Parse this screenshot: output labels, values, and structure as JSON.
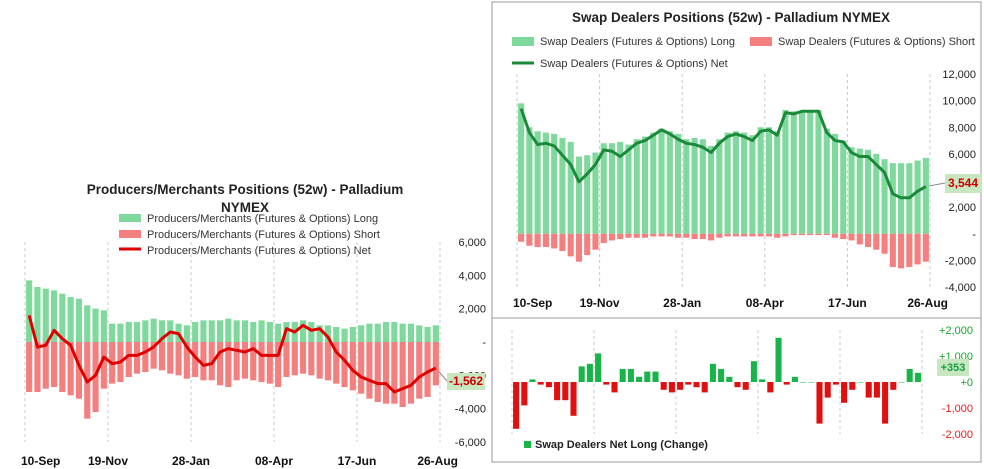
{
  "colors": {
    "long": "#7fd99c",
    "short": "#f47f7f",
    "net_producers": "#e00000",
    "net_swap": "#1a8a3a",
    "change_pos": "#18b44a",
    "change_neg": "#e01010",
    "callout_bg": "#c8e6c0",
    "frame": "#9a9a9a"
  },
  "chart_data": [
    {
      "type": "bar",
      "title": "Producers/Merchants Positions (52w) - Palladium NYMEX",
      "legend": [
        "Producers/Merchants (Futures & Options)  Long",
        "Producers/Merchants (Futures & Options)  Short",
        "Producers/Merchants (Futures & Options)  Net"
      ],
      "x_ticks": [
        "10-Sep",
        "19-Nov",
        "28-Jan",
        "08-Apr",
        "17-Jun",
        "26-Aug"
      ],
      "y_ticks": [
        "6,000",
        "4,000",
        "2,000",
        "-",
        "-2,000",
        "-4,000",
        "-6,000"
      ],
      "ylim": [
        -6000,
        6000
      ],
      "last_value_label": "-1,562",
      "series": [
        {
          "name": "Long",
          "values": [
            3700,
            3300,
            3200,
            3100,
            2900,
            2700,
            2600,
            2200,
            2000,
            1900,
            1100,
            1100,
            1200,
            1200,
            1300,
            1400,
            1300,
            1300,
            1100,
            1000,
            1200,
            1300,
            1300,
            1300,
            1400,
            1300,
            1300,
            1200,
            1300,
            1200,
            1100,
            1200,
            1200,
            1300,
            1200,
            1000,
            1000,
            900,
            800,
            900,
            1000,
            1100,
            1100,
            1200,
            1200,
            1100,
            1100,
            1000,
            900,
            1000
          ]
        },
        {
          "name": "Short",
          "values": [
            -3000,
            -3000,
            -2800,
            -2700,
            -3000,
            -3200,
            -3400,
            -4600,
            -4200,
            -2800,
            -2500,
            -2400,
            -2100,
            -1900,
            -1800,
            -1600,
            -1700,
            -1900,
            -2000,
            -2200,
            -2100,
            -2300,
            -2300,
            -2600,
            -2700,
            -2300,
            -2200,
            -2300,
            -2400,
            -2500,
            -2700,
            -2100,
            -2000,
            -1900,
            -2000,
            -2200,
            -2300,
            -2500,
            -2700,
            -2900,
            -3100,
            -3400,
            -3600,
            -3700,
            -3700,
            -3900,
            -3700,
            -3400,
            -3300,
            -2600
          ]
        },
        {
          "name": "Net",
          "values": [
            1600,
            -300,
            -200,
            700,
            200,
            -200,
            -1400,
            -2400,
            -2000,
            -900,
            -1300,
            -1200,
            -800,
            -800,
            -600,
            -300,
            200,
            600,
            500,
            -300,
            -900,
            -1400,
            -1300,
            -600,
            -400,
            -500,
            -600,
            -400,
            -800,
            -800,
            -800,
            800,
            600,
            1000,
            700,
            800,
            300,
            -600,
            -1100,
            -1700,
            -2100,
            -2300,
            -2500,
            -2500,
            -3000,
            -2800,
            -2600,
            -2100,
            -1800,
            -1562
          ]
        }
      ]
    },
    {
      "type": "bar",
      "title": "Swap Dealers Positions (52w) - Palladium NYMEX",
      "legend": [
        "Swap Dealers (Futures & Options)  Long",
        "Swap Dealers (Futures & Options)  Short",
        "Swap Dealers (Futures & Options)  Net"
      ],
      "x_ticks": [
        "10-Sep",
        "19-Nov",
        "28-Jan",
        "08-Apr",
        "17-Jun",
        "26-Aug"
      ],
      "y_ticks": [
        "12,000",
        "10,000",
        "8,000",
        "6,000",
        "4,000",
        "2,000",
        "-",
        "-2,000",
        "-4,000"
      ],
      "ylim": [
        -4000,
        12000
      ],
      "last_value_label": "3,544",
      "series": [
        {
          "name": "Long",
          "values": [
            9800,
            8000,
            7700,
            7600,
            7500,
            7200,
            6900,
            5800,
            5900,
            6100,
            6800,
            6800,
            6900,
            6700,
            7100,
            7300,
            7600,
            7900,
            7700,
            7500,
            7100,
            7200,
            7100,
            6600,
            7100,
            7600,
            7700,
            7600,
            7400,
            8000,
            8000,
            7700,
            9300,
            9200,
            9100,
            9200,
            9300,
            7900,
            7500,
            7000,
            6500,
            6400,
            6300,
            6000,
            5600,
            5300,
            5300,
            5300,
            5500,
            5700
          ]
        },
        {
          "name": "Short",
          "values": [
            -600,
            -900,
            -1000,
            -1000,
            -1100,
            -1300,
            -1700,
            -2100,
            -1600,
            -1200,
            -700,
            -500,
            -400,
            -300,
            -300,
            -300,
            -200,
            -200,
            -200,
            -300,
            -300,
            -400,
            -400,
            -500,
            -300,
            -200,
            -200,
            -200,
            -200,
            -200,
            -200,
            -300,
            -200,
            -100,
            -100,
            -100,
            -100,
            -100,
            -300,
            -400,
            -500,
            -800,
            -1000,
            -1200,
            -1500,
            -2500,
            -2600,
            -2500,
            -2300,
            -2100
          ]
        },
        {
          "name": "Net",
          "values": [
            9400,
            7600,
            6700,
            6800,
            6600,
            5900,
            5200,
            3900,
            4500,
            5200,
            6300,
            6200,
            5800,
            6300,
            6800,
            7000,
            7400,
            7800,
            7500,
            7100,
            6800,
            6700,
            6500,
            6100,
            6800,
            7300,
            7500,
            7300,
            7000,
            7700,
            7800,
            7400,
            9100,
            9000,
            9200,
            9200,
            9200,
            7600,
            7000,
            6900,
            6100,
            5800,
            5800,
            5200,
            4600,
            3000,
            2700,
            2700,
            3200,
            3544
          ]
        }
      ]
    },
    {
      "type": "bar",
      "legend": [
        "Swap Dealers  Net Long (Change)"
      ],
      "y_ticks": [
        "+2,000",
        "+1,000",
        "+0",
        "-1,000",
        "-2,000"
      ],
      "ylim": [
        -2000,
        2000
      ],
      "last_value_label": "+353",
      "series": [
        {
          "name": "Swap Dealers  Net Long (Change)",
          "values": [
            -1800,
            -900,
            100,
            -100,
            -200,
            -700,
            -700,
            -1300,
            600,
            700,
            1100,
            -100,
            -400,
            500,
            500,
            200,
            400,
            400,
            -300,
            -400,
            -300,
            -100,
            -200,
            -400,
            700,
            500,
            200,
            -200,
            -300,
            800,
            100,
            -400,
            1700,
            -100,
            200,
            0,
            0,
            -1600,
            -600,
            -100,
            -800,
            -300,
            0,
            -600,
            -600,
            -1600,
            -300,
            0,
            500,
            353
          ]
        }
      ]
    }
  ]
}
